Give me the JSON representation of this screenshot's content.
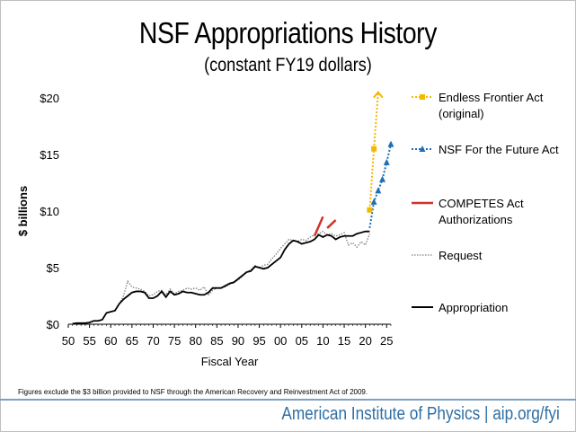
{
  "chart_data": {
    "type": "line",
    "title": "NSF Appropriations History",
    "subtitle": "(constant FY19 dollars)",
    "xlabel": "Fiscal Year",
    "ylabel": "$ billions",
    "xlim": [
      1950,
      2026
    ],
    "ylim": [
      0,
      20
    ],
    "xtick_labels": [
      "50",
      "55",
      "60",
      "65",
      "70",
      "75",
      "80",
      "85",
      "90",
      "95",
      "00",
      "05",
      "10",
      "15",
      "20",
      "25"
    ],
    "ytick_labels": [
      "$0",
      "$5",
      "$10",
      "$15",
      "$20"
    ],
    "grid": false,
    "legend_position": "right",
    "series": [
      {
        "name": "Endless Frontier Act (original)",
        "color": "#f5b800",
        "style": "dotted-square-markers-arrow",
        "x": [
          2021,
          2022,
          2023
        ],
        "y": [
          10.1,
          15.5,
          20.5
        ]
      },
      {
        "name": "NSF For the Future Act",
        "color": "#1f6fb5",
        "style": "dotted-triangle-markers",
        "x": [
          2021,
          2022,
          2023,
          2024,
          2025,
          2026
        ],
        "y": [
          8.5,
          10.8,
          11.8,
          12.8,
          14.3,
          15.9
        ]
      },
      {
        "name": "COMPETES Act Authorizations",
        "color": "#d1322a",
        "style": "solid",
        "segments": [
          {
            "x": [
              2008,
              2010
            ],
            "y": [
              7.8,
              9.5
            ]
          },
          {
            "x": [
              2011,
              2013
            ],
            "y": [
              8.5,
              9.2
            ]
          }
        ]
      },
      {
        "name": "Request",
        "color": "#7f7f7f",
        "style": "dotted",
        "x": [
          1962,
          1963,
          1964,
          1965,
          1966,
          1967,
          1968,
          1969,
          1970,
          1971,
          1972,
          1973,
          1974,
          1975,
          1976,
          1977,
          1978,
          1979,
          1980,
          1981,
          1982,
          1983,
          1984,
          1985,
          1986,
          1987,
          1988,
          1989,
          1990,
          1991,
          1992,
          1993,
          1994,
          1995,
          1996,
          1997,
          1998,
          1999,
          2000,
          2001,
          2002,
          2003,
          2004,
          2005,
          2006,
          2007,
          2008,
          2009,
          2010,
          2011,
          2012,
          2013,
          2014,
          2015,
          2016,
          2017,
          2018,
          2019,
          2020,
          2021
        ],
        "y": [
          1.8,
          2.5,
          3.8,
          3.3,
          3.2,
          3.1,
          2.9,
          2.5,
          2.6,
          2.9,
          3.0,
          2.6,
          3.1,
          2.7,
          2.9,
          3.0,
          3.2,
          3.1,
          3.2,
          3.0,
          3.3,
          2.6,
          3.0,
          3.2,
          3.2,
          3.3,
          3.5,
          3.7,
          3.9,
          4.2,
          4.6,
          4.8,
          5.2,
          5.0,
          5.2,
          5.3,
          5.8,
          6.2,
          6.7,
          7.1,
          7.5,
          7.4,
          7.3,
          7.5,
          7.4,
          7.7,
          7.9,
          8.0,
          8.2,
          7.9,
          8.0,
          7.8,
          7.9,
          8.1,
          7.0,
          7.2,
          6.8,
          7.3,
          7.0,
          8.0
        ]
      },
      {
        "name": "Appropriation",
        "color": "#000000",
        "style": "solid",
        "x": [
          1951,
          1952,
          1953,
          1954,
          1955,
          1956,
          1957,
          1958,
          1959,
          1960,
          1961,
          1962,
          1963,
          1964,
          1965,
          1966,
          1967,
          1968,
          1969,
          1970,
          1971,
          1972,
          1973,
          1974,
          1975,
          1976,
          1977,
          1978,
          1979,
          1980,
          1981,
          1982,
          1983,
          1984,
          1985,
          1986,
          1987,
          1988,
          1989,
          1990,
          1991,
          1992,
          1993,
          1994,
          1995,
          1996,
          1997,
          1998,
          1999,
          2000,
          2001,
          2002,
          2003,
          2004,
          2005,
          2006,
          2007,
          2008,
          2009,
          2010,
          2011,
          2012,
          2013,
          2014,
          2015,
          2016,
          2017,
          2018,
          2019,
          2020,
          2021
        ],
        "y": [
          0.05,
          0.1,
          0.1,
          0.1,
          0.15,
          0.3,
          0.3,
          0.4,
          1.0,
          1.1,
          1.2,
          1.8,
          2.2,
          2.5,
          2.8,
          2.9,
          2.9,
          2.8,
          2.3,
          2.3,
          2.5,
          2.9,
          2.4,
          2.9,
          2.6,
          2.7,
          2.9,
          2.8,
          2.8,
          2.7,
          2.6,
          2.6,
          2.8,
          3.2,
          3.2,
          3.2,
          3.4,
          3.6,
          3.7,
          4.0,
          4.3,
          4.6,
          4.7,
          5.1,
          5.0,
          4.9,
          5.0,
          5.3,
          5.6,
          5.9,
          6.6,
          7.1,
          7.4,
          7.3,
          7.1,
          7.2,
          7.3,
          7.5,
          7.9,
          7.7,
          7.9,
          7.8,
          7.5,
          7.7,
          7.8,
          7.8,
          7.8,
          8.0,
          8.1,
          8.2,
          8.2
        ]
      }
    ]
  },
  "footnote": "Figures exclude the $3 billion provided to NSF through the American Recovery and Reinvestment Act of 2009.",
  "footer": "American Institute of Physics | aip.org/fyi"
}
